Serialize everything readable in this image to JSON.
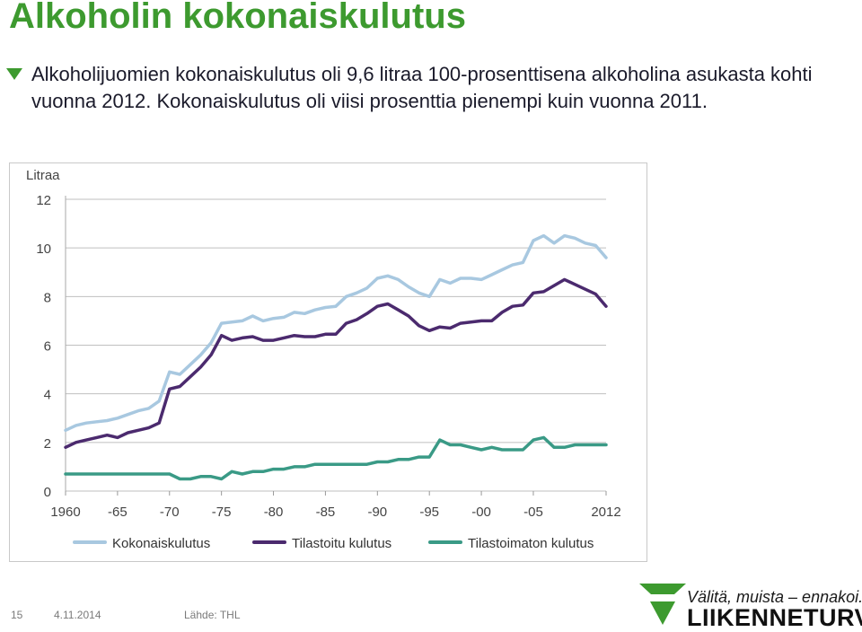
{
  "slide": {
    "title": "Alkoholin kokonaiskulutus",
    "bullet_text": "Alkoholijuomien kokonaiskulutus oli 9,6 litraa 100-prosenttisena alkoholina asukasta kohti vuonna 2012. Kokonaiskulutus oli viisi prosenttia pienempi kuin vuonna 2011."
  },
  "footer": {
    "page_number": "15",
    "date": "4.11.2014",
    "source": "Lähde: THL"
  },
  "logo": {
    "slogan": "Välitä, muista – ennakoi.",
    "name": "LIIKENNETURVA"
  },
  "colors": {
    "title": "#3d9a2f",
    "logo_green": "#3d9a2f",
    "kokonais": "#a8c8e0",
    "tilastoitu": "#4b2a6e",
    "tilastoimaton": "#3a9a86",
    "grid": "#bfbfbf"
  },
  "chart_data": {
    "type": "line",
    "ylabel": "Litraa",
    "ylim": [
      0,
      12
    ],
    "yticks": [
      0,
      2,
      4,
      6,
      8,
      10,
      12
    ],
    "xlim": [
      1960,
      2012
    ],
    "xticks": [
      {
        "value": 1960,
        "label": "1960"
      },
      {
        "value": 1965,
        "label": "-65"
      },
      {
        "value": 1970,
        "label": "-70"
      },
      {
        "value": 1975,
        "label": "-75"
      },
      {
        "value": 1980,
        "label": "-80"
      },
      {
        "value": 1985,
        "label": "-85"
      },
      {
        "value": 1990,
        "label": "-90"
      },
      {
        "value": 1995,
        "label": "-95"
      },
      {
        "value": 2000,
        "label": "-00"
      },
      {
        "value": 2005,
        "label": "-05"
      },
      {
        "value": 2012,
        "label": "2012"
      }
    ],
    "grid": true,
    "legend_position": "bottom",
    "x": [
      1960,
      1961,
      1962,
      1963,
      1964,
      1965,
      1966,
      1967,
      1968,
      1969,
      1970,
      1971,
      1972,
      1973,
      1974,
      1975,
      1976,
      1977,
      1978,
      1979,
      1980,
      1981,
      1982,
      1983,
      1984,
      1985,
      1986,
      1987,
      1988,
      1989,
      1990,
      1991,
      1992,
      1993,
      1994,
      1995,
      1996,
      1997,
      1998,
      1999,
      2000,
      2001,
      2002,
      2003,
      2004,
      2005,
      2006,
      2007,
      2008,
      2009,
      2010,
      2011,
      2012
    ],
    "series": [
      {
        "name": "Kokonaiskulutus",
        "color_key": "kokonais",
        "values": [
          2.5,
          2.7,
          2.8,
          2.85,
          2.9,
          3.0,
          3.15,
          3.3,
          3.4,
          3.7,
          4.9,
          4.8,
          5.2,
          5.6,
          6.1,
          6.9,
          6.95,
          7.0,
          7.2,
          7.0,
          7.1,
          7.15,
          7.35,
          7.3,
          7.45,
          7.55,
          7.6,
          8.0,
          8.15,
          8.35,
          8.75,
          8.85,
          8.7,
          8.4,
          8.15,
          8.0,
          8.7,
          8.55,
          8.75,
          8.75,
          8.7,
          8.9,
          9.1,
          9.3,
          9.4,
          10.3,
          10.5,
          10.2,
          10.5,
          10.4,
          10.2,
          10.1,
          9.6
        ]
      },
      {
        "name": "Tilastoitu kulutus",
        "color_key": "tilastoitu",
        "values": [
          1.8,
          2.0,
          2.1,
          2.2,
          2.3,
          2.2,
          2.4,
          2.5,
          2.6,
          2.8,
          4.2,
          4.3,
          4.7,
          5.1,
          5.6,
          6.4,
          6.2,
          6.3,
          6.35,
          6.2,
          6.2,
          6.3,
          6.4,
          6.35,
          6.35,
          6.45,
          6.45,
          6.9,
          7.05,
          7.3,
          7.6,
          7.7,
          7.45,
          7.2,
          6.8,
          6.6,
          6.75,
          6.7,
          6.9,
          6.95,
          7.0,
          7.0,
          7.35,
          7.6,
          7.65,
          8.15,
          8.2,
          8.45,
          8.7,
          8.5,
          8.3,
          8.1,
          7.6
        ]
      },
      {
        "name": "Tilastoimaton kulutus",
        "color_key": "tilastoimaton",
        "values": [
          0.7,
          0.7,
          0.7,
          0.7,
          0.7,
          0.7,
          0.7,
          0.7,
          0.7,
          0.7,
          0.7,
          0.5,
          0.5,
          0.6,
          0.6,
          0.5,
          0.8,
          0.7,
          0.8,
          0.8,
          0.9,
          0.9,
          1.0,
          1.0,
          1.1,
          1.1,
          1.1,
          1.1,
          1.1,
          1.1,
          1.2,
          1.2,
          1.3,
          1.3,
          1.4,
          1.4,
          2.1,
          1.9,
          1.9,
          1.8,
          1.7,
          1.8,
          1.7,
          1.7,
          1.7,
          2.1,
          2.2,
          1.8,
          1.8,
          1.9,
          1.9,
          1.9,
          1.9
        ]
      }
    ]
  }
}
